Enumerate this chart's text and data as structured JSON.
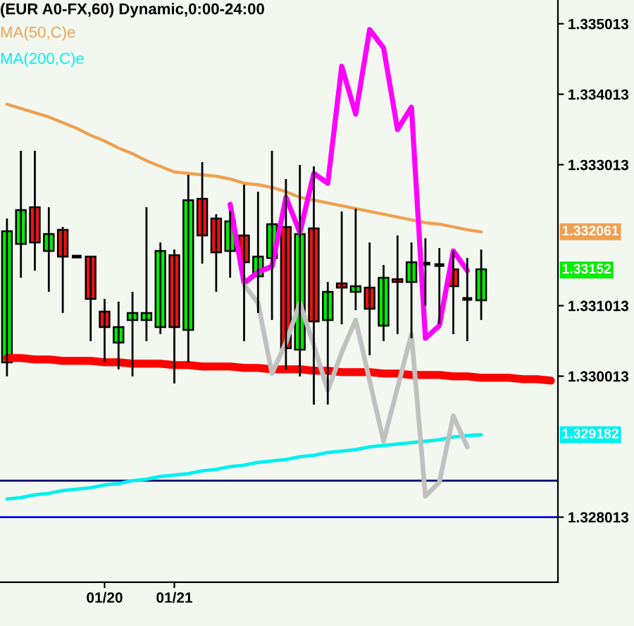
{
  "chart_data": {
    "type": "candlestick",
    "title": "(EUR A0-FX,60) Dynamic,0:00-24:00",
    "categories": [
      null,
      null,
      null,
      null,
      null,
      null,
      null,
      "01/20",
      null,
      null,
      null,
      null,
      "01/21",
      null,
      null,
      null,
      null,
      null,
      null,
      null,
      null,
      null,
      null,
      null,
      null,
      null,
      null,
      null,
      null,
      null,
      null,
      null,
      null,
      null,
      null,
      null,
      null,
      null,
      null,
      null
    ],
    "ohlc": [
      [
        1.33021,
        1.33225,
        1.33001,
        1.33207
      ],
      [
        1.33189,
        1.33321,
        1.33141,
        1.33237
      ],
      [
        1.33241,
        1.33321,
        1.33151,
        1.33191
      ],
      [
        1.33179,
        1.33241,
        1.33121,
        1.33203
      ],
      [
        1.33209,
        1.33213,
        1.33091,
        1.33171
      ],
      [
        1.33171,
        1.33173,
        1.33169,
        1.33171
      ],
      [
        1.33171,
        1.33171,
        1.33051,
        1.33111
      ],
      [
        1.33093,
        1.33111,
        1.33021,
        1.33071
      ],
      [
        1.33049,
        1.33107,
        1.33011,
        1.33071
      ],
      [
        1.33081,
        1.33121,
        1.33001,
        1.33091
      ],
      [
        1.33081,
        1.33241,
        1.33051,
        1.33091
      ],
      [
        1.33071,
        1.33191,
        1.33061,
        1.33179
      ],
      [
        1.33173,
        1.33181,
        1.32991,
        1.33071
      ],
      [
        1.33067,
        1.33287,
        1.33021,
        1.33251
      ],
      [
        1.33253,
        1.33305,
        1.33161,
        1.33201
      ],
      [
        1.33225,
        1.33231,
        1.33121,
        1.33177
      ],
      [
        1.33179,
        1.33235,
        1.33141,
        1.33221
      ],
      [
        1.33201,
        1.33273,
        1.33051,
        1.33163
      ],
      [
        1.33143,
        1.33263,
        1.33091,
        1.33171
      ],
      [
        1.33169,
        1.33321,
        1.33081,
        1.33217
      ],
      [
        1.33213,
        1.33281,
        1.33011,
        1.33041
      ],
      [
        1.33039,
        1.33301,
        1.33001,
        1.33203
      ],
      [
        1.33211,
        1.33299,
        1.32961,
        1.33079
      ],
      [
        1.33081,
        1.33135,
        1.32961,
        1.33121
      ],
      [
        1.33133,
        1.33235,
        1.33075,
        1.33127
      ],
      [
        1.33121,
        1.33239,
        1.33095,
        1.33129
      ],
      [
        1.33127,
        1.33191,
        1.33031,
        1.33097
      ],
      [
        1.33073,
        1.33159,
        1.33051,
        1.33141
      ],
      [
        1.33139,
        1.33201,
        1.33061,
        1.33135
      ],
      [
        1.33135,
        1.33191,
        1.33055,
        1.33163
      ],
      [
        1.33161,
        1.33197,
        1.33101,
        1.33161
      ],
      [
        1.33159,
        1.33183,
        1.33075,
        1.33159
      ],
      [
        1.33153,
        1.33179,
        1.33061,
        1.33129
      ],
      [
        1.33111,
        1.33169,
        1.33051,
        1.33111
      ],
      [
        1.33109,
        1.33181,
        1.33081,
        1.33153
      ],
      null,
      null,
      null,
      null,
      null
    ],
    "colors": [
      "#00ee00",
      "#00ee00",
      "#ee1111",
      "#00ee00",
      "#ee1111",
      "#000000",
      "#ee1111",
      "#ee1111",
      "#00ee00",
      "#00ee00",
      "#00ee00",
      "#00ee00",
      "#ee1111",
      "#00ee00",
      "#ee1111",
      "#ee1111",
      "#00ee00",
      "#ee1111",
      "#00ee00",
      "#00ee00",
      "#ee1111",
      "#00ee00",
      "#ee1111",
      "#00ee00",
      "#ee1111",
      "#00ee00",
      "#ee1111",
      "#00ee00",
      "#ee1111",
      "#00ee00",
      "#000000",
      "#000000",
      "#ee1111",
      "#000000",
      "#00ee00",
      null,
      null,
      null,
      null,
      null
    ],
    "series": [
      {
        "name": "MA(50,C)e",
        "type": "line",
        "color": "#f0a050",
        "values": [
          1.33387,
          1.33381,
          1.33375,
          1.33369,
          1.33361,
          1.33353,
          1.33343,
          1.33335,
          1.33325,
          1.33317,
          1.33307,
          1.33299,
          1.33291,
          1.33289,
          1.33287,
          1.33285,
          1.33281,
          1.33275,
          1.33273,
          1.33269,
          1.33263,
          1.33255,
          1.33251,
          1.33247,
          1.33243,
          1.33239,
          1.33235,
          1.33231,
          1.33227,
          1.33223,
          1.33219,
          1.33217,
          1.33213,
          1.33209,
          1.332061,
          null,
          null,
          null,
          null,
          null
        ]
      },
      {
        "name": "MA(200,C)e",
        "type": "line",
        "color": "#00f0f0",
        "values": [
          1.32827,
          1.32829,
          1.32833,
          1.32835,
          1.32839,
          1.32841,
          1.32843,
          1.32847,
          1.32849,
          1.32853,
          1.32855,
          1.32859,
          1.32861,
          1.32863,
          1.32867,
          1.32869,
          1.32873,
          1.32875,
          1.32879,
          1.32881,
          1.32883,
          1.32887,
          1.32889,
          1.32893,
          1.32895,
          1.32897,
          1.32901,
          1.32903,
          1.32905,
          1.32907,
          1.32909,
          1.32911,
          1.32915,
          1.32917,
          1.329182,
          null,
          null,
          null,
          null,
          null
        ]
      },
      {
        "type": "line",
        "color": "#ff0000",
        "values": [
          1.33027,
          1.33027,
          1.33025,
          1.33025,
          1.33023,
          1.33023,
          1.33023,
          1.33021,
          1.33021,
          1.33019,
          1.33019,
          1.33019,
          1.33017,
          1.33017,
          1.33015,
          1.33015,
          1.33015,
          1.33013,
          1.33013,
          1.33011,
          1.33011,
          1.33011,
          1.33009,
          1.33009,
          1.33007,
          1.33007,
          1.33007,
          1.33005,
          1.33005,
          1.33003,
          1.33003,
          1.33003,
          1.33001,
          1.33001,
          1.32999,
          1.32999,
          1.32999,
          1.32997,
          1.32997,
          1.32995
        ]
      },
      {
        "type": "line",
        "color": "#ff00ff",
        "values": [
          null,
          null,
          null,
          null,
          null,
          null,
          null,
          null,
          null,
          null,
          null,
          null,
          null,
          null,
          null,
          null,
          1.33245,
          1.33133,
          1.33149,
          1.33157,
          1.33255,
          1.33205,
          1.33289,
          1.33275,
          1.33441,
          1.33373,
          1.33493,
          1.33467,
          1.33351,
          1.33383,
          1.33055,
          1.33073,
          1.33179,
          1.33151,
          null,
          null,
          null,
          null,
          null,
          null
        ]
      },
      {
        "type": "line",
        "color": "#c0c0c0",
        "values": [
          null,
          null,
          null,
          null,
          null,
          null,
          null,
          null,
          null,
          null,
          null,
          null,
          null,
          null,
          null,
          null,
          null,
          1.33131,
          1.33105,
          1.33005,
          1.33049,
          1.33105,
          1.33045,
          1.32981,
          1.33035,
          1.33081,
          1.32995,
          1.32909,
          1.32985,
          1.33061,
          1.32831,
          1.32851,
          1.32945,
          1.32901,
          null,
          null,
          null,
          null,
          null,
          null
        ]
      }
    ],
    "ref_lines": [
      {
        "axis": "y",
        "value": 1.32853,
        "color": "#000066"
      },
      {
        "axis": "y",
        "value": 1.328013,
        "color": "#0000ee"
      }
    ],
    "annotations": [
      "1.332061",
      "1.33152",
      "1.329182"
    ],
    "ylim": [
      1.32709,
      1.33535
    ],
    "yticks": [
      1.335013,
      1.334013,
      1.333013,
      1.331013,
      1.330013,
      1.328013
    ],
    "legend": "top left",
    "grid": false
  }
}
